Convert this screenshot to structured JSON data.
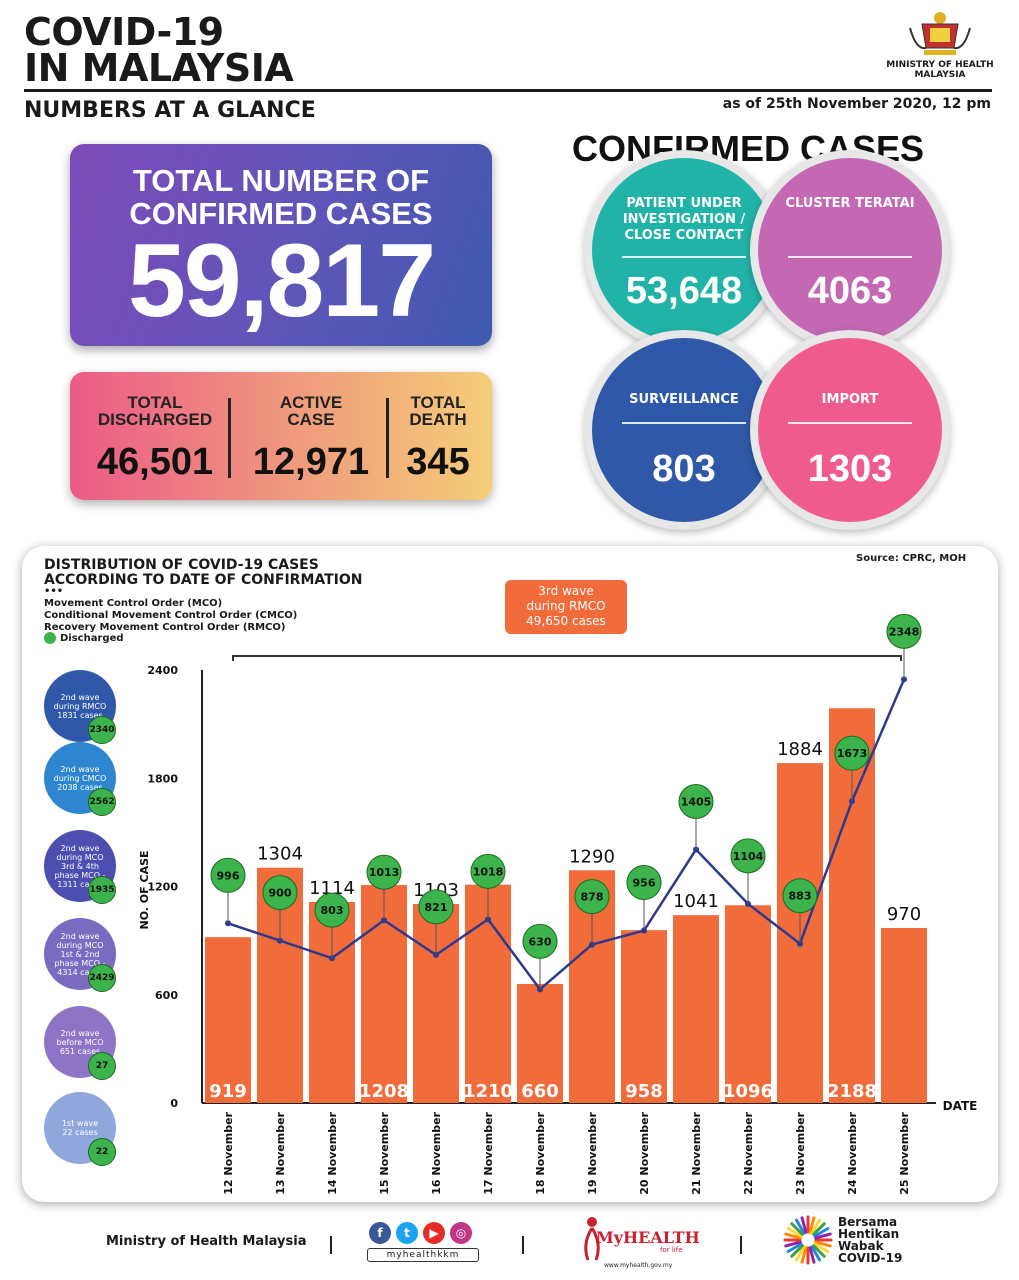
{
  "header": {
    "title_line1": "COVID-19",
    "title_line2": "IN MALAYSIA",
    "subtitle": "NUMBERS AT A GLANCE",
    "as_of": "as of 25th November 2020, 12 pm",
    "ministry_line1": "MINISTRY OF HEALTH",
    "ministry_line2": "MALAYSIA"
  },
  "total": {
    "label_line1": "TOTAL NUMBER OF",
    "label_line2": "CONFIRMED CASES",
    "value": "59,817"
  },
  "stats": [
    {
      "label_line1": "TOTAL",
      "label_line2": "DISCHARGED",
      "value": "46,501"
    },
    {
      "label_line1": "ACTIVE",
      "label_line2": "CASE",
      "value": "12,971"
    },
    {
      "label_line1": "TOTAL",
      "label_line2": "DEATH",
      "value": "345"
    }
  ],
  "confirmed": {
    "title": "CONFIRMED CASES",
    "items": [
      {
        "label": "PATIENT UNDER INVESTIGATION / CLOSE CONTACT",
        "value": "53,648",
        "color": "#22b3a8"
      },
      {
        "label": "CLUSTER TERATAI",
        "value": "4063",
        "color": "#c468b4"
      },
      {
        "label": "SURVEILLANCE",
        "value": "803",
        "color": "#2f59a8"
      },
      {
        "label": "IMPORT",
        "value": "1303",
        "color": "#ef5b8c"
      }
    ]
  },
  "chart_panel": {
    "title_line1": "DISTRIBUTION OF COVID-19 CASES",
    "title_line2": "ACCORDING TO DATE OF CONFIRMATION",
    "source": "Source: CPRC, MOH",
    "dots": "•••",
    "legend": [
      "Movement Control Order (MCO)",
      "Conditional Movement Control Order (CMCO)",
      "Recovery Movement Control Order (RMCO)"
    ],
    "legend_discharged": "Discharged",
    "third_wave": [
      "3rd wave",
      "during RMCO",
      "49,650 cases"
    ],
    "waves": [
      {
        "lines": [
          "2nd wave",
          "during RMCO",
          "1831 cases"
        ],
        "badge": "2340",
        "color": "#2f59a8"
      },
      {
        "lines": [
          "2nd wave",
          "during CMCO",
          "2038 cases"
        ],
        "badge": "2562",
        "color": "#2f86d0"
      },
      {
        "lines": [
          "2nd wave",
          "during MCO",
          "3rd & 4th",
          "phase MCO -",
          "1311 cases"
        ],
        "badge": "1935",
        "color": "#4c4eb0"
      },
      {
        "lines": [
          "2nd wave",
          "during MCO",
          "1st & 2nd",
          "phase MCO -",
          "4314 cases"
        ],
        "badge": "2429",
        "color": "#7b6bc0"
      },
      {
        "lines": [
          "2nd wave",
          "before MCO",
          "651 cases"
        ],
        "badge": "27",
        "color": "#8e74c4"
      },
      {
        "lines": [
          "1st wave",
          "22 cases"
        ],
        "badge": "22",
        "color": "#8fa7dd"
      }
    ]
  },
  "chart_data": {
    "type": "bar",
    "ylabel": "NO. OF CASE",
    "xlabel": "DATE",
    "ylim": [
      0,
      2400
    ],
    "yticks": [
      "0",
      "600",
      "1200",
      "1800",
      "2400"
    ],
    "categories": [
      "12 November",
      "13 November",
      "14 November",
      "15 November",
      "16 November",
      "17 November",
      "18 November",
      "19 November",
      "20 November",
      "21 November",
      "22 November",
      "23 November",
      "24 November",
      "25 November"
    ],
    "series": [
      {
        "type": "bar",
        "values": [
          919,
          1304,
          1114,
          1208,
          1103,
          1210,
          660,
          1290,
          958,
          1041,
          1096,
          1884,
          2188,
          970
        ],
        "color": "#f26b3a"
      },
      {
        "name": "Discharged",
        "type": "line",
        "values": [
          996,
          900,
          803,
          1013,
          821,
          1018,
          630,
          878,
          956,
          1405,
          1104,
          883,
          1673,
          2348
        ],
        "color": "#2b3a8f"
      }
    ],
    "bar_labels_inside": [
      true,
      false,
      false,
      true,
      false,
      true,
      true,
      false,
      true,
      false,
      true,
      false,
      true,
      false
    ]
  },
  "footer": {
    "ministry": "Ministry of Health Malaysia",
    "social_handle": "myhealthkkm",
    "myhealth": "MyHEALTH",
    "myhealth_sub": "for life",
    "myhealth_url": "www.myhealth.gov.my",
    "bersama": [
      "Bersama",
      "Hentikan",
      "Wabak",
      "COVID-19"
    ]
  }
}
